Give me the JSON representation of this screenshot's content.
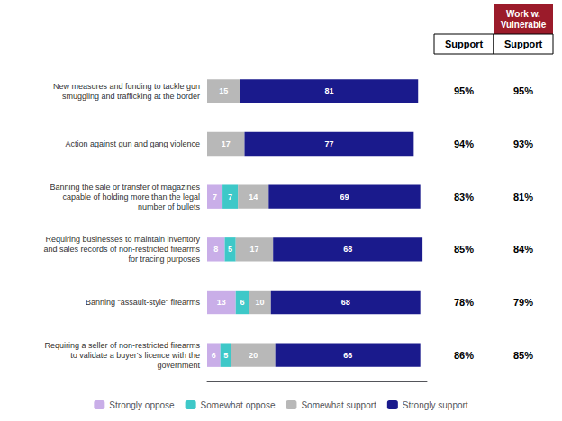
{
  "chart_data": {
    "type": "bar",
    "orientation": "horizontal",
    "stacked": true,
    "data_labels": true,
    "tick_labels": "y",
    "grid": false,
    "legend": "bottom",
    "categories": [
      "New measures and funding to tackle gun\nsmuggling and trafficking at the border",
      "Action against gun and gang violence",
      "Banning the sale or transfer of magazines\ncapable of holding more than the legal\nnumber of bullets",
      "Requiring businesses to maintain inventory\nand sales records of non-restricted firearms\nfor tracing purposes",
      "Banning \"assault-style\" firearms",
      "Requiring a seller of non-restricted firearms\nto validate a buyer's licence with the\ngovernment"
    ],
    "xlim": [
      0,
      100
    ],
    "series": [
      {
        "name": "Strongly oppose",
        "color": "#c9aee8",
        "values": [
          0,
          0,
          7,
          8,
          13,
          6
        ]
      },
      {
        "name": "Somewhat oppose",
        "color": "#3ec8c8",
        "values": [
          0,
          0,
          7,
          5,
          6,
          5
        ]
      },
      {
        "name": "Somewhat support",
        "color": "#b8b8b8",
        "values": [
          15,
          17,
          14,
          17,
          10,
          20
        ]
      },
      {
        "name": "Strongly support",
        "color": "#1a1a8c",
        "values": [
          81,
          77,
          69,
          68,
          68,
          66
        ]
      }
    ],
    "columns": [
      {
        "header": "Support",
        "values": [
          95,
          94,
          83,
          85,
          78,
          86
        ],
        "value_labels": [
          "95%",
          "94%",
          "83%",
          "85%",
          "78%",
          "86%"
        ]
      },
      {
        "group": "Work w.\nVulnerable",
        "color": "#9b1b2a",
        "header": "Support",
        "values": [
          95,
          93,
          81,
          84,
          79,
          85
        ],
        "value_labels": [
          "95%",
          "93%",
          "81%",
          "84%",
          "79%",
          "85%"
        ]
      }
    ]
  }
}
